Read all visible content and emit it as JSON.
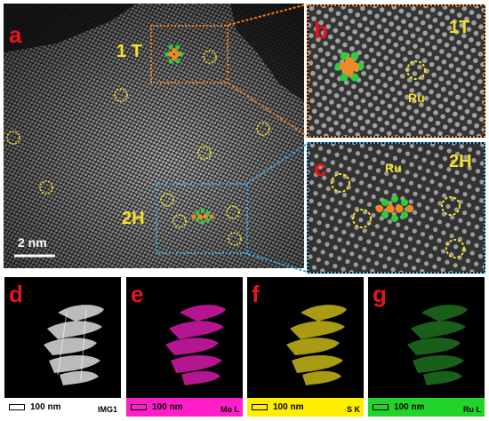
{
  "panels": {
    "a": {
      "letter": "a",
      "label_1t": "1 T",
      "label_2h": "2H",
      "scale": "2 nm"
    },
    "b": {
      "letter": "b",
      "phase": "1T",
      "ru": "Ru"
    },
    "c": {
      "letter": "c",
      "phase": "2H",
      "ru": "Ru"
    },
    "d": {
      "letter": "d",
      "element": "IMG1",
      "scale": "100 nm",
      "legend_color": "#ffffff"
    },
    "e": {
      "letter": "e",
      "element": "Mo L",
      "scale": "100 nm",
      "legend_color": "#ff1ec8",
      "map_color": "#e21bb4"
    },
    "f": {
      "letter": "f",
      "element": "S K",
      "scale": "100 nm",
      "legend_color": "#ffee00",
      "map_color": "#d4c419"
    },
    "g": {
      "letter": "g",
      "element": "Ru L",
      "scale": "100 nm",
      "legend_color": "#22d42a",
      "map_color": "#2fae30"
    }
  },
  "colors": {
    "orange_box": "#f07a1e",
    "blue_box": "#3aa0e0",
    "ru_circle": "#f5e02a",
    "label_red": "#e8141a"
  },
  "icons": [
    "mo-atom-orange",
    "s-atom-green",
    "ru-site-circle"
  ]
}
